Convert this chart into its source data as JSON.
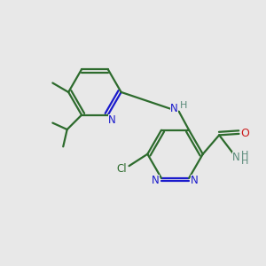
{
  "bg_color": "#e8e8e8",
  "bond_color": "#2d6b2d",
  "n_color": "#1a1acc",
  "o_color": "#cc1a1a",
  "cl_color": "#2d6b2d",
  "h_color": "#5a8a7a",
  "line_width": 1.6,
  "fig_size": [
    3.0,
    3.0
  ],
  "dpi": 100,
  "xlim": [
    0,
    10
  ],
  "ylim": [
    0,
    10
  ]
}
